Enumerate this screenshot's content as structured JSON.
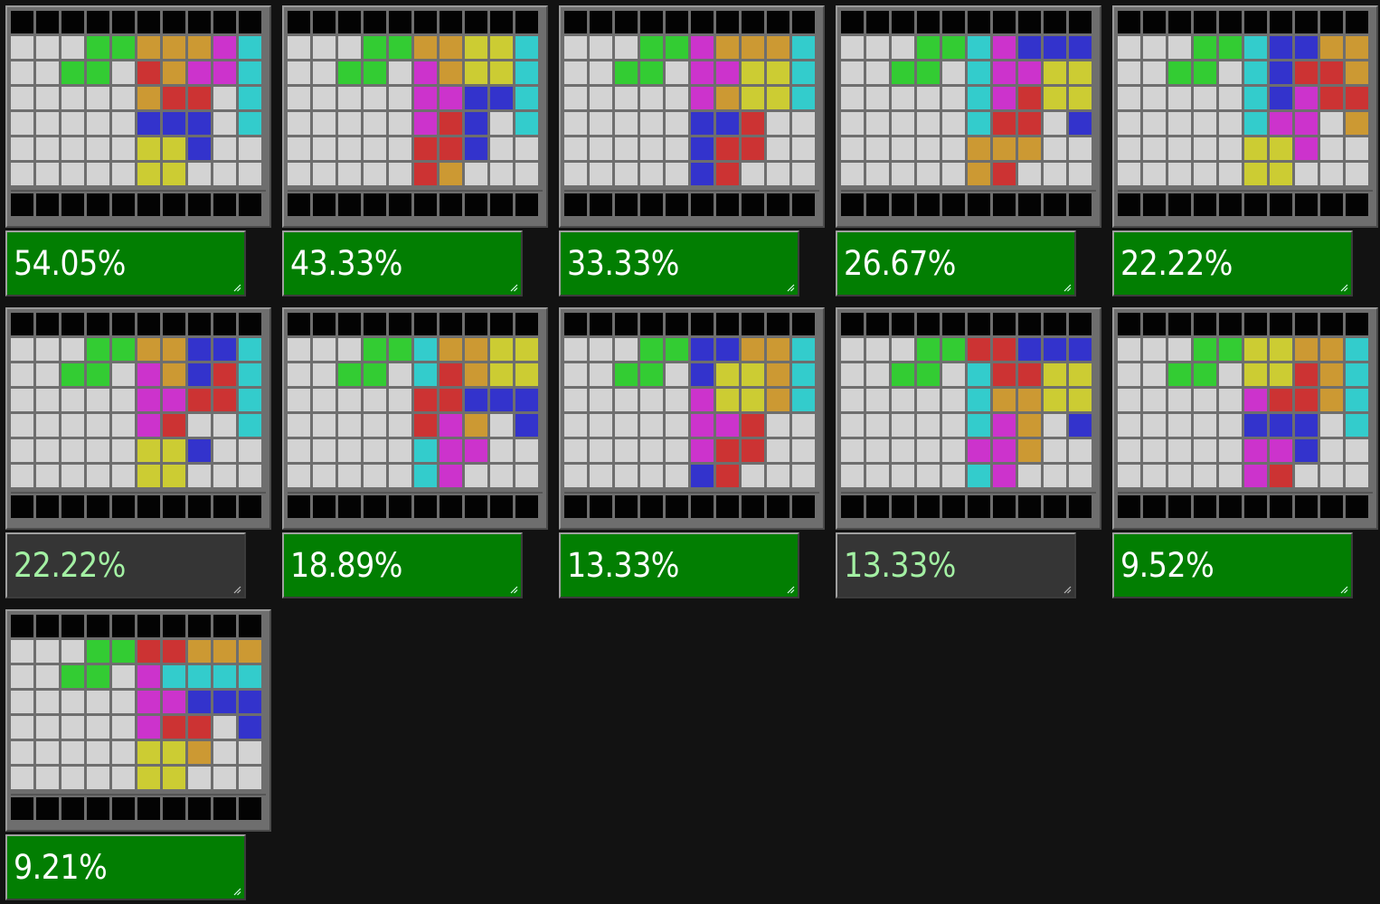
{
  "palette": {
    "E": "#d3d3d3",
    "G": "#33cc33",
    "O": "#cc9933",
    "R": "#cc3333",
    "M": "#cc33cc",
    "C": "#33cccc",
    "B": "#3333cc",
    "Y": "#cccc33",
    "K": "#030303"
  },
  "cards": [
    {
      "score": "54.05%",
      "style": "green",
      "grid": [
        "EEEGGOOOMC",
        "EEGGEROMMC",
        "EEEEEORREC",
        "EEEEEBBBEC",
        "EEEEEYYBEE",
        "EEEEEYYEEE"
      ]
    },
    {
      "score": "43.33%",
      "style": "green",
      "grid": [
        "EEEGGOOYYC",
        "EEGGEMOYYC",
        "EEEEEMMBBC",
        "EEEEEMRBEC",
        "EEEEERRBEE",
        "EEEEEROEEE"
      ]
    },
    {
      "score": "33.33%",
      "style": "green",
      "grid": [
        "EEEGGMOOOC",
        "EEGGEMMYYC",
        "EEEEEMOYYC",
        "EEEEEBBREE",
        "EEEEEBRREE",
        "EEEEEBREEE"
      ]
    },
    {
      "score": "26.67%",
      "style": "green",
      "grid": [
        "EEEGGCMBBB",
        "EEGGECMMYY",
        "EEEEECMRYY",
        "EEEEECRREB",
        "EEEEEOOOEE",
        "EEEEEOREEE"
      ]
    },
    {
      "score": "22.22%",
      "style": "green",
      "grid": [
        "EEEGGCBBOO",
        "EEGGECBRRO",
        "EEEEECBMRR",
        "EEEEECMMEO",
        "EEEEEYYMEE",
        "EEEEEYYEEE"
      ]
    },
    {
      "score": "22.22%",
      "style": "gray",
      "grid": [
        "EEEGGOOBBC",
        "EEGGEMOBRC",
        "EEEEEMMRRC",
        "EEEEEMREEC",
        "EEEEEYYBEE",
        "EEEEEYYEEE"
      ]
    },
    {
      "score": "18.89%",
      "style": "green",
      "grid": [
        "EEEGGCOOYY",
        "EEGGECROYY",
        "EEEEERRBBB",
        "EEEEERMOEB",
        "EEEEECMMEE",
        "EEEEECMEEE"
      ]
    },
    {
      "score": "13.33%",
      "style": "green",
      "grid": [
        "EEEGGBBOOC",
        "EEGGEBYYOC",
        "EEEEEMYYOC",
        "EEEEEMMREE",
        "EEEEEMRREE",
        "EEEEEBREEE"
      ]
    },
    {
      "score": "13.33%",
      "style": "gray",
      "grid": [
        "EEEGGRRBBB",
        "EEGGECRRYY",
        "EEEEECOOYY",
        "EEEEECMOEB",
        "EEEEEMMOEE",
        "EEEEECMEEE"
      ]
    },
    {
      "score": "9.52%",
      "style": "green",
      "grid": [
        "EEEGGYYOOC",
        "EEGGEYYROC",
        "EEEEEMRROC",
        "EEEEEBBBEC",
        "EEEEEMMBEE",
        "EEEEEMREEE"
      ]
    },
    {
      "score": "9.21%",
      "style": "green",
      "grid": [
        "EEEGGRROOO",
        "EEGGEMCCCC",
        "EEEEEMMBBB",
        "EEEEEMRREB",
        "EEEEEYYOEE",
        "EEEEEYYEEE"
      ]
    }
  ]
}
